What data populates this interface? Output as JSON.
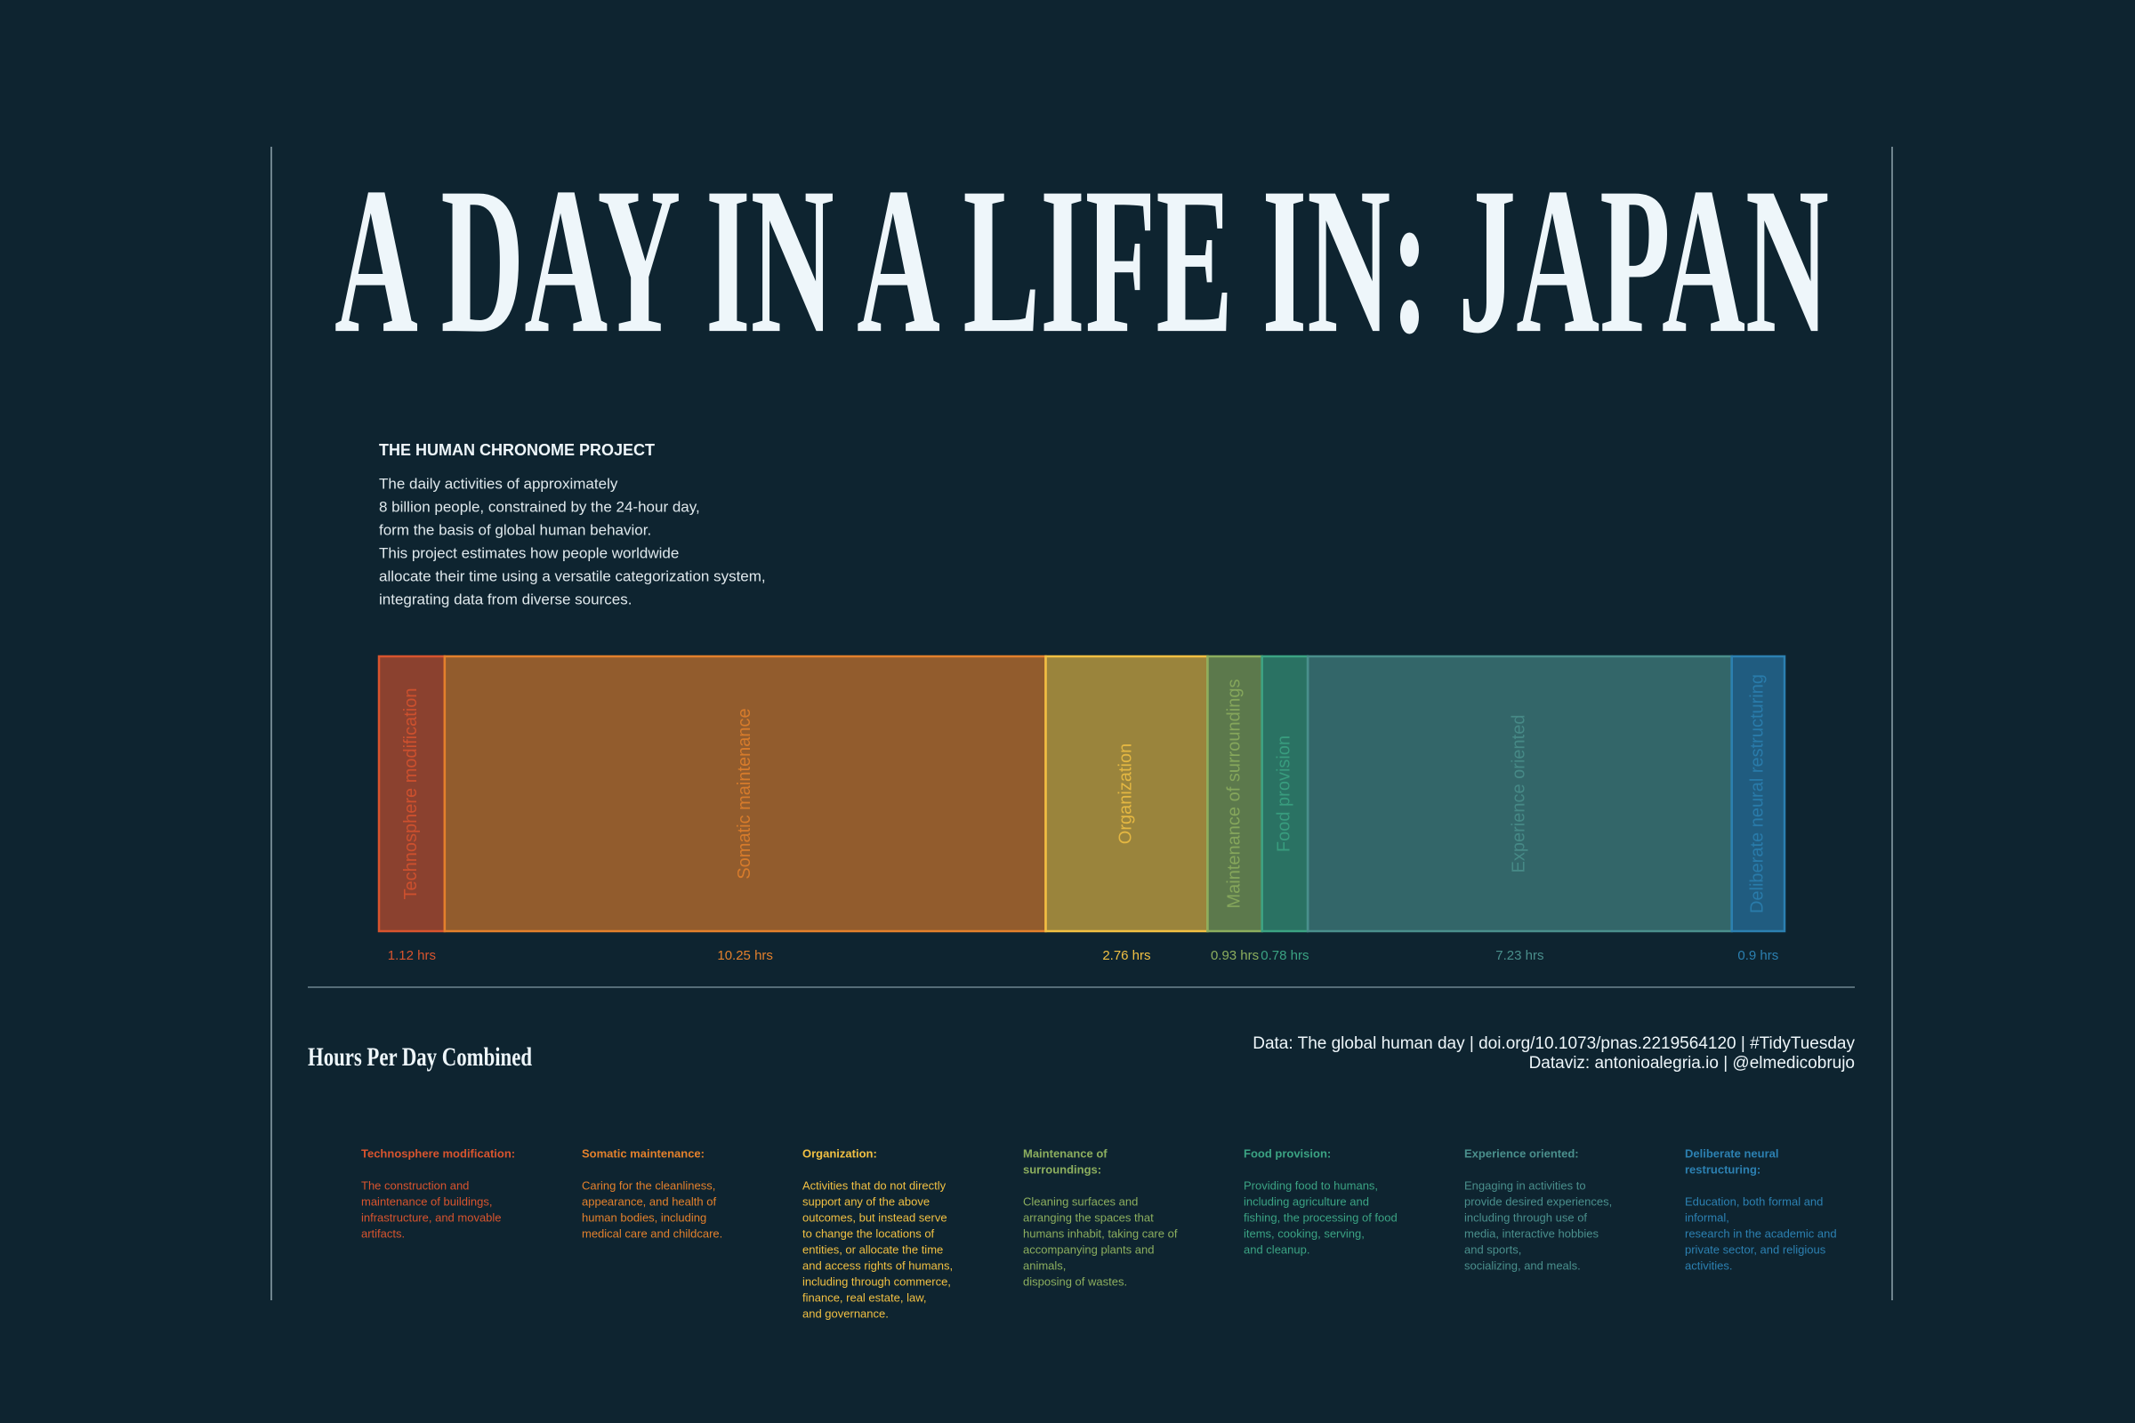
{
  "title": "A DAY IN A LIFE IN: JAPAN",
  "project": {
    "heading": "THE HUMAN CHRONOME PROJECT",
    "lines": [
      "The daily activities of approximately",
      "8 billion people, constrained by the 24-hour day,",
      "form the basis of global human behavior.",
      "This project estimates how people worldwide",
      "allocate their time using a versatile categorization system,",
      "integrating data from diverse sources."
    ]
  },
  "chart_data": {
    "type": "stacked-bar",
    "categories": [
      "Technosphere modification",
      "Somatic maintenance",
      "Organization",
      "Maintenance of surroundings",
      "Food provision",
      "Experience oriented",
      "Deliberate neural restructuring"
    ],
    "values": [
      1.12,
      10.25,
      2.76,
      0.93,
      0.78,
      7.23,
      0.9
    ],
    "value_labels": [
      "1.12 hrs",
      "10.25 hrs",
      "2.76 hrs",
      "0.93 hrs",
      "0.78 hrs",
      "7.23 hrs",
      "0.9 hrs"
    ],
    "colors": [
      "#d8542e",
      "#e3802c",
      "#f1c043",
      "#8cae5e",
      "#3ba383",
      "#4a8f8c",
      "#2c80b1"
    ],
    "caption": "Hours Per Day Combined"
  },
  "source": [
    "Data: The global human day | doi.org/10.1073/pnas.2219564120 | #TidyTuesday",
    "Dataviz: antonioalegria.io | @elmedicobrujo"
  ],
  "legend": {
    "items": [
      {
        "heading": [
          "Technosphere modification:"
        ],
        "lines": [
          "The construction and",
          "maintenance of buildings,",
          "infrastructure, and movable",
          "artifacts."
        ]
      },
      {
        "heading": [
          "Somatic maintenance:"
        ],
        "lines": [
          "Caring for the cleanliness,",
          "appearance, and health of",
          "human bodies, including",
          "medical care and childcare."
        ]
      },
      {
        "heading": [
          "Organization:"
        ],
        "lines": [
          "Activities that do not directly",
          "support any of the above",
          "outcomes, but instead serve",
          "to change the locations of",
          "entities, or allocate the time",
          "and access rights of humans,",
          "including through commerce,",
          "finance, real estate, law,",
          "and governance."
        ]
      },
      {
        "heading": [
          "Maintenance of",
          "surroundings:"
        ],
        "lines": [
          "Cleaning surfaces and",
          "arranging the spaces that",
          "humans inhabit, taking care of",
          "accompanying plants and",
          "animals,",
          "disposing of wastes."
        ]
      },
      {
        "heading": [
          "Food provision:"
        ],
        "lines": [
          "Providing food to humans,",
          "including agriculture and",
          "fishing, the processing of food",
          "items, cooking, serving,",
          "and cleanup."
        ]
      },
      {
        "heading": [
          "Experience oriented:"
        ],
        "lines": [
          "Engaging in activities to",
          "provide desired experiences,",
          "including through use of",
          "media, interactive hobbies",
          "and sports,",
          "socializing, and meals."
        ]
      },
      {
        "heading": [
          "Deliberate neural",
          "restructuring:"
        ],
        "lines": [
          "Education, both formal and",
          "informal,",
          "research in the academic and",
          "private sector, and religious",
          "activities."
        ]
      }
    ]
  }
}
